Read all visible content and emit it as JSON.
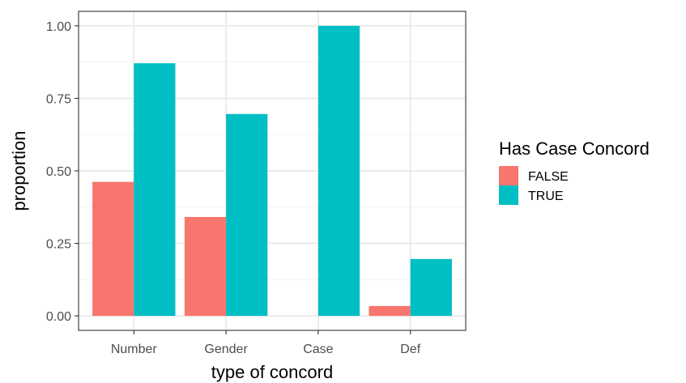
{
  "chart_data": {
    "type": "bar",
    "categories": [
      "Number",
      "Gender",
      "Case",
      "Def"
    ],
    "series": [
      {
        "name": "FALSE",
        "values": [
          0.462,
          0.341,
          0.0,
          0.034
        ],
        "color": "#F8766D"
      },
      {
        "name": "TRUE",
        "values": [
          0.871,
          0.696,
          1.0,
          0.196
        ],
        "color": "#00BFC4"
      }
    ],
    "xlabel": "type of concord",
    "ylabel": "proportion",
    "ylim": [
      -0.05,
      1.05
    ],
    "yticks": [
      0.0,
      0.25,
      0.5,
      0.75,
      1.0
    ],
    "ytick_labels": [
      "0.00",
      "0.25",
      "0.50",
      "0.75",
      "1.00"
    ],
    "legend_title": "Has Case Concord",
    "legend_position": "right",
    "grid": true,
    "theme": "bw"
  }
}
